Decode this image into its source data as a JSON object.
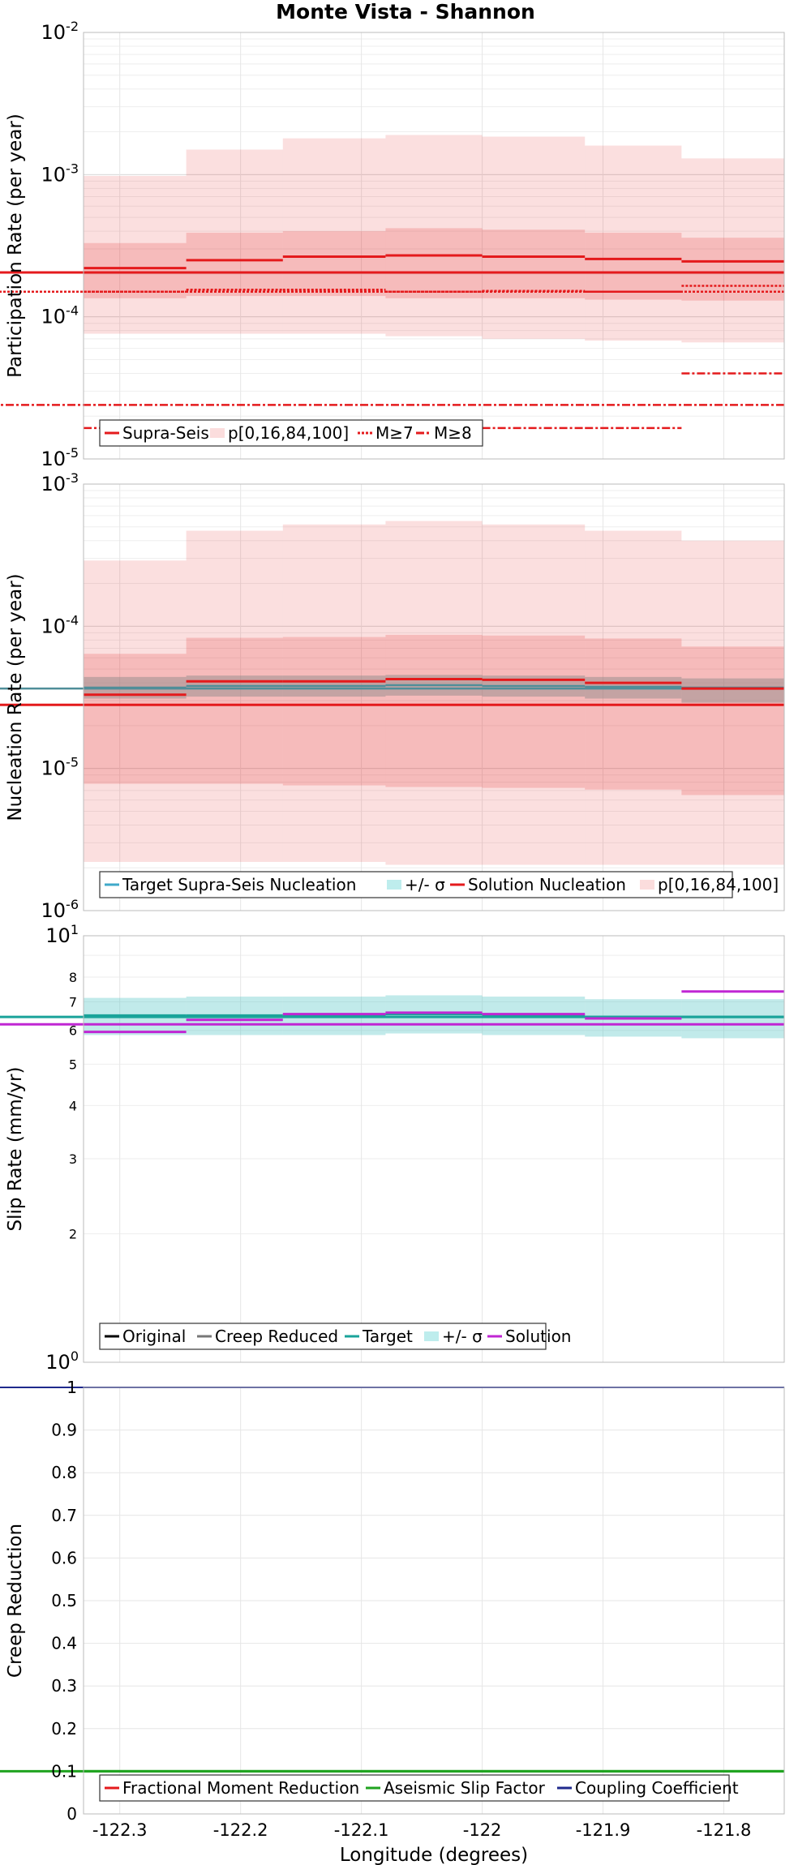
{
  "title": "Monte Vista - Shannon",
  "xlabel": "Longitude (degrees)",
  "colors": {
    "red": "#e41a1c",
    "teal": "#1aa39a",
    "purple": "#c026d3",
    "navy": "#1f2a8c",
    "green": "#1fa31f",
    "gray": "#777777",
    "black": "#000000"
  },
  "chart_data": [
    {
      "type": "line",
      "name": "participation",
      "ylabel": "Participation Rate (per year)",
      "yscale": "log",
      "ylim": [
        1e-05,
        0.01
      ],
      "xlim": [
        -122.33,
        -121.75
      ],
      "xticks": [
        "-122.3",
        "-122.2",
        "-122.1",
        "-122",
        "-121.9",
        "-121.8"
      ],
      "yticks": [
        {
          "base": "10",
          "exp": "-5"
        },
        {
          "base": "10",
          "exp": "-4"
        },
        {
          "base": "10",
          "exp": "-3"
        },
        {
          "base": "10",
          "exp": "-2"
        }
      ],
      "bins": [
        -122.33,
        -122.245,
        -122.165,
        -122.08,
        -122.0,
        -121.915,
        -121.835,
        -121.75
      ],
      "supra_seis": [
        0.00022,
        0.00025,
        0.000265,
        0.00027,
        0.000265,
        0.000255,
        0.000245,
        0.000205
      ],
      "p_0_100": [
        [
          7.6e-05,
          0.00098
        ],
        [
          7.6e-05,
          0.0015
        ],
        [
          7.6e-05,
          0.0018
        ],
        [
          7.3e-05,
          0.0019
        ],
        [
          7e-05,
          0.00185
        ],
        [
          6.8e-05,
          0.0016
        ],
        [
          6.6e-05,
          0.0013
        ],
        [
          6.2e-05,
          0.0009
        ]
      ],
      "p_16_84": [
        [
          0.000135,
          0.00033
        ],
        [
          0.00014,
          0.00039
        ],
        [
          0.00014,
          0.0004
        ],
        [
          0.000135,
          0.00042
        ],
        [
          0.000135,
          0.00041
        ],
        [
          0.000132,
          0.00039
        ],
        [
          0.00013,
          0.00036
        ],
        [
          0.00012,
          0.0003
        ]
      ],
      "m7": [
        0.00015,
        0.000155,
        0.000155,
        0.00015,
        0.000152,
        0.00015,
        0.000165,
        0.00015
      ],
      "m8": [
        1.65e-05,
        1.65e-05,
        1.65e-05,
        1.65e-05,
        1.65e-05,
        1.65e-05,
        4e-05,
        2.4e-05
      ],
      "legend": [
        "Supra-Seis",
        "p[0,16,84,100]",
        "M≥7",
        "M≥8"
      ]
    },
    {
      "type": "line",
      "name": "nucleation",
      "ylabel": "Nucleation Rate (per year)",
      "yscale": "log",
      "ylim": [
        1e-06,
        0.001
      ],
      "yticks": [
        {
          "base": "10",
          "exp": "-6"
        },
        {
          "base": "10",
          "exp": "-5"
        },
        {
          "base": "10",
          "exp": "-4"
        },
        {
          "base": "10",
          "exp": "-3"
        }
      ],
      "target": [
        3.7e-05,
        3.8e-05,
        3.8e-05,
        3.85e-05,
        3.8e-05,
        3.75e-05,
        3.7e-05,
        3.65e-05
      ],
      "target_sigma": [
        [
          3.1e-05,
          4.4e-05
        ],
        [
          3.2e-05,
          4.5e-05
        ],
        [
          3.2e-05,
          4.5e-05
        ],
        [
          3.25e-05,
          4.55e-05
        ],
        [
          3.2e-05,
          4.5e-05
        ],
        [
          3.1e-05,
          4.4e-05
        ],
        [
          2.9e-05,
          4.3e-05
        ],
        [
          3e-05,
          4.3e-05
        ]
      ],
      "solution": [
        3.3e-05,
        4.1e-05,
        4.1e-05,
        4.25e-05,
        4.2e-05,
        4e-05,
        3.65e-05,
        2.8e-05
      ],
      "p_0_100": [
        [
          2.2e-06,
          0.00029
        ],
        [
          2.2e-06,
          0.00047
        ],
        [
          2.2e-06,
          0.00052
        ],
        [
          2.1e-06,
          0.00055
        ],
        [
          2.1e-06,
          0.00052
        ],
        [
          2.1e-06,
          0.00047
        ],
        [
          2.1e-06,
          0.0004
        ],
        [
          2.05e-06,
          0.00022
        ]
      ],
      "p_16_84": [
        [
          7.8e-06,
          6.4e-05
        ],
        [
          7.8e-06,
          8.3e-05
        ],
        [
          7.6e-06,
          8.4e-05
        ],
        [
          7.4e-06,
          8.7e-05
        ],
        [
          7.3e-06,
          8.6e-05
        ],
        [
          7.1e-06,
          8.2e-05
        ],
        [
          6.5e-06,
          7.2e-05
        ],
        [
          6.7e-06,
          5.5e-05
        ]
      ],
      "legend": [
        "Target Supra-Seis Nucleation",
        "+/- σ",
        "Solution Nucleation",
        "p[0,16,84,100]"
      ]
    },
    {
      "type": "line",
      "name": "slip",
      "ylabel": "Slip Rate (mm/yr)",
      "yscale": "log",
      "ylim": [
        1,
        10
      ],
      "yticks_major": [
        {
          "base": "10",
          "exp": "0"
        },
        {
          "base": "10",
          "exp": "1"
        }
      ],
      "yticks_minor": [
        "2",
        "3",
        "4",
        "5",
        "6",
        "7",
        "8"
      ],
      "target": [
        6.5,
        6.5,
        6.5,
        6.55,
        6.5,
        6.45,
        6.45,
        6.45
      ],
      "target_sigma": [
        [
          5.85,
          7.15
        ],
        [
          5.85,
          7.2
        ],
        [
          5.85,
          7.2
        ],
        [
          5.9,
          7.25
        ],
        [
          5.85,
          7.2
        ],
        [
          5.8,
          7.1
        ],
        [
          5.75,
          7.1
        ],
        [
          5.8,
          7.1
        ]
      ],
      "solution": [
        5.95,
        6.35,
        6.55,
        6.6,
        6.55,
        6.4,
        7.4,
        6.2
      ],
      "legend": [
        "Original",
        "Creep Reduced",
        "Target",
        "+/- σ",
        "Solution"
      ]
    },
    {
      "type": "line",
      "name": "creep",
      "ylabel": "Creep Reduction",
      "yscale": "linear",
      "ylim": [
        0,
        1
      ],
      "yticks": [
        "0",
        "0.1",
        "0.2",
        "0.3",
        "0.4",
        "0.5",
        "0.6",
        "0.7",
        "0.8",
        "0.9",
        "1"
      ],
      "aseismic_slip_factor": [
        0.1,
        0.1,
        0.1,
        0.1,
        0.1,
        0.1,
        0.1,
        0.1
      ],
      "coupling_coefficient": [
        1,
        1,
        1,
        1,
        1,
        1,
        1,
        1
      ],
      "legend": [
        "Fractional Moment Reduction",
        "Aseismic Slip Factor",
        "Coupling Coefficient"
      ]
    }
  ]
}
